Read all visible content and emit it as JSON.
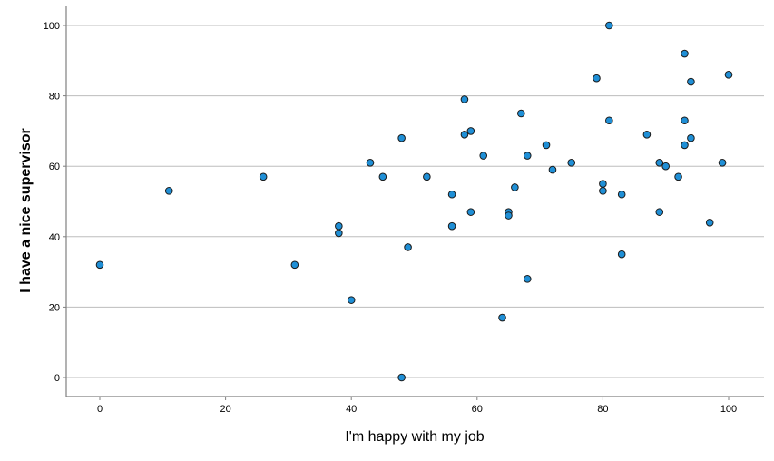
{
  "chart_data": {
    "type": "scatter",
    "title": "",
    "xlabel": "I'm happy with my job",
    "ylabel": "I have a nice supervisor",
    "xlim": [
      -5,
      105
    ],
    "ylim": [
      -5,
      106
    ],
    "xticks": [
      0,
      20,
      40,
      60,
      80,
      100
    ],
    "yticks": [
      0,
      20,
      40,
      60,
      80,
      100
    ],
    "grid": "horizontal",
    "legend": "none",
    "marker_color": "#1f8fd6",
    "marker_edge_color": "#1a1a1a",
    "grid_color": "#bdbdbd",
    "axis_color": "#808080",
    "points": [
      {
        "x": 0,
        "y": 32
      },
      {
        "x": 11,
        "y": 53
      },
      {
        "x": 26,
        "y": 57
      },
      {
        "x": 31,
        "y": 32
      },
      {
        "x": 38,
        "y": 43
      },
      {
        "x": 38,
        "y": 41
      },
      {
        "x": 40,
        "y": 22
      },
      {
        "x": 43,
        "y": 61
      },
      {
        "x": 45,
        "y": 57
      },
      {
        "x": 48,
        "y": 68
      },
      {
        "x": 48,
        "y": 0
      },
      {
        "x": 49,
        "y": 37
      },
      {
        "x": 52,
        "y": 57
      },
      {
        "x": 56,
        "y": 52
      },
      {
        "x": 56,
        "y": 43
      },
      {
        "x": 58,
        "y": 79
      },
      {
        "x": 58,
        "y": 69
      },
      {
        "x": 59,
        "y": 70
      },
      {
        "x": 59,
        "y": 47
      },
      {
        "x": 61,
        "y": 63
      },
      {
        "x": 64,
        "y": 17
      },
      {
        "x": 65,
        "y": 47
      },
      {
        "x": 65,
        "y": 46
      },
      {
        "x": 66,
        "y": 54
      },
      {
        "x": 67,
        "y": 75
      },
      {
        "x": 68,
        "y": 63
      },
      {
        "x": 68,
        "y": 28
      },
      {
        "x": 71,
        "y": 66
      },
      {
        "x": 72,
        "y": 59
      },
      {
        "x": 75,
        "y": 61
      },
      {
        "x": 79,
        "y": 85
      },
      {
        "x": 80,
        "y": 55
      },
      {
        "x": 80,
        "y": 53
      },
      {
        "x": 81,
        "y": 100
      },
      {
        "x": 81,
        "y": 73
      },
      {
        "x": 83,
        "y": 52
      },
      {
        "x": 83,
        "y": 35
      },
      {
        "x": 87,
        "y": 69
      },
      {
        "x": 89,
        "y": 61
      },
      {
        "x": 89,
        "y": 47
      },
      {
        "x": 90,
        "y": 60
      },
      {
        "x": 92,
        "y": 57
      },
      {
        "x": 93,
        "y": 92
      },
      {
        "x": 93,
        "y": 73
      },
      {
        "x": 93,
        "y": 66
      },
      {
        "x": 94,
        "y": 84
      },
      {
        "x": 94,
        "y": 68
      },
      {
        "x": 97,
        "y": 44
      },
      {
        "x": 99,
        "y": 61
      },
      {
        "x": 100,
        "y": 86
      }
    ]
  }
}
